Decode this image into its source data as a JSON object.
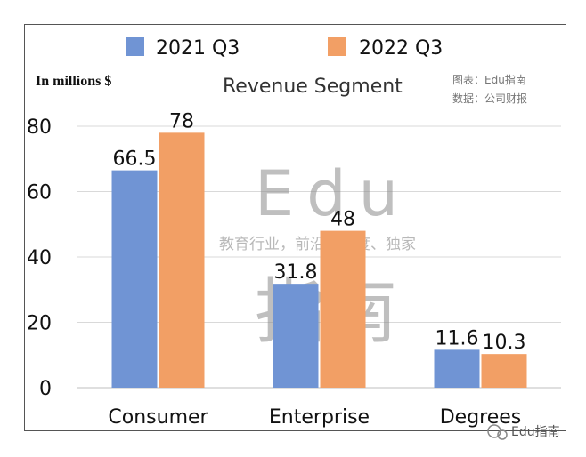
{
  "chart_data": {
    "type": "bar",
    "title": "Revenue Segment",
    "units_label": "In millions  $",
    "categories": [
      "Consumer",
      "Enterprise",
      "Degrees"
    ],
    "series": [
      {
        "name": "2021 Q3",
        "values": [
          66.5,
          31.8,
          11.6
        ],
        "color": "#7094d4",
        "labels": [
          "66.5",
          "31.8",
          "11.6"
        ]
      },
      {
        "name": "2022 Q3",
        "values": [
          78,
          48,
          10.3
        ],
        "color": "#f29f65",
        "labels": [
          "78",
          "48",
          "10.3"
        ]
      }
    ],
    "ylim": [
      0,
      80
    ],
    "yticks": [
      0,
      20,
      40,
      60,
      80
    ],
    "ytick_labels": [
      "0",
      "20",
      "40",
      "60",
      "80"
    ],
    "grid": true,
    "legend_position": "top"
  },
  "source": {
    "line1": "图表：Edu指南",
    "line2": "数据：公司财报"
  },
  "watermark": {
    "big": "Edu",
    "tagline": "教育行业，前沿、深度、独家",
    "cn": "指南"
  },
  "brand": {
    "label": "Edu指南"
  },
  "colors": {
    "grid": "#d9d9d9",
    "axis": "#bfbfbf"
  }
}
